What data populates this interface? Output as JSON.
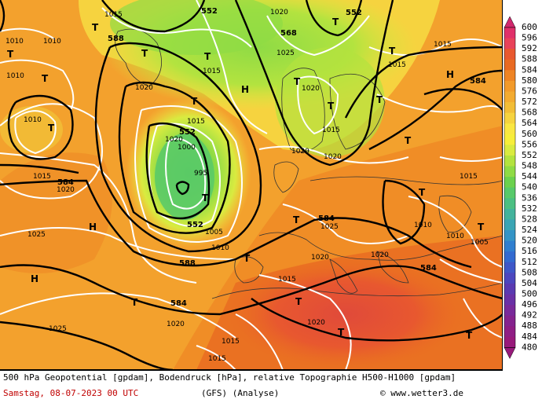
{
  "legend": {
    "values": [
      "600",
      "596",
      "592",
      "588",
      "584",
      "580",
      "576",
      "572",
      "568",
      "564",
      "560",
      "556",
      "552",
      "548",
      "544",
      "540",
      "536",
      "532",
      "528",
      "524",
      "520",
      "516",
      "512",
      "508",
      "504",
      "500",
      "496",
      "492",
      "488",
      "484",
      "480"
    ],
    "colors": [
      "#d1286e",
      "#e0306a",
      "#e8425a",
      "#e8582f",
      "#e96a22",
      "#ee8424",
      "#f29a2a",
      "#f3ab30",
      "#f2bd36",
      "#f6d33f",
      "#fae742",
      "#f7ee3a",
      "#d9eb40",
      "#b3e33f",
      "#8fdb45",
      "#6bd14e",
      "#57c96a",
      "#4bbf82",
      "#43b39c",
      "#3aa5b4",
      "#3494c6",
      "#2f7ecf",
      "#326ad0",
      "#3e57c8",
      "#4c47be",
      "#5a3ab1",
      "#6a31a6",
      "#792a9a",
      "#85238e",
      "#8f1e84",
      "#981a7b"
    ]
  },
  "footer": {
    "line1": "500 hPa Geopotential [gpdam], Bodendruck [hPa], relative Topographie H500-H1000 [gpdam]",
    "date": "Samstag, 08-07-2023  00 UTC",
    "model": "(GFS)  (Analyse)",
    "credit": "© www.wetter3.de"
  },
  "map": {
    "geopotential_labels": [
      "552",
      "552",
      "568",
      "588",
      "552",
      "552",
      "584",
      "584",
      "588",
      "584",
      "584",
      "584"
    ],
    "pressure_labels": [
      "1015",
      "1020",
      "1025",
      "1010",
      "1015",
      "1010",
      "1010",
      "1010",
      "1015",
      "1020",
      "1000",
      "995",
      "1005",
      "1020",
      "1025",
      "1015",
      "1020",
      "1015",
      "1015",
      "1010",
      "1005",
      "1015",
      "1010",
      "1020",
      "1020",
      "1020",
      "1015",
      "1020",
      "1010",
      "1015",
      "1015",
      "1020",
      "1025",
      "1020",
      "1015",
      "1020",
      "1025"
    ],
    "high_symbols": [
      "H",
      "H",
      "H",
      "H"
    ],
    "low_symbols": [
      "T",
      "T",
      "T",
      "T",
      "T",
      "T",
      "T",
      "T",
      "T",
      "T",
      "T",
      "T",
      "T",
      "T",
      "T",
      "T",
      "T",
      "T",
      "T",
      "T",
      "T",
      "T"
    ]
  }
}
